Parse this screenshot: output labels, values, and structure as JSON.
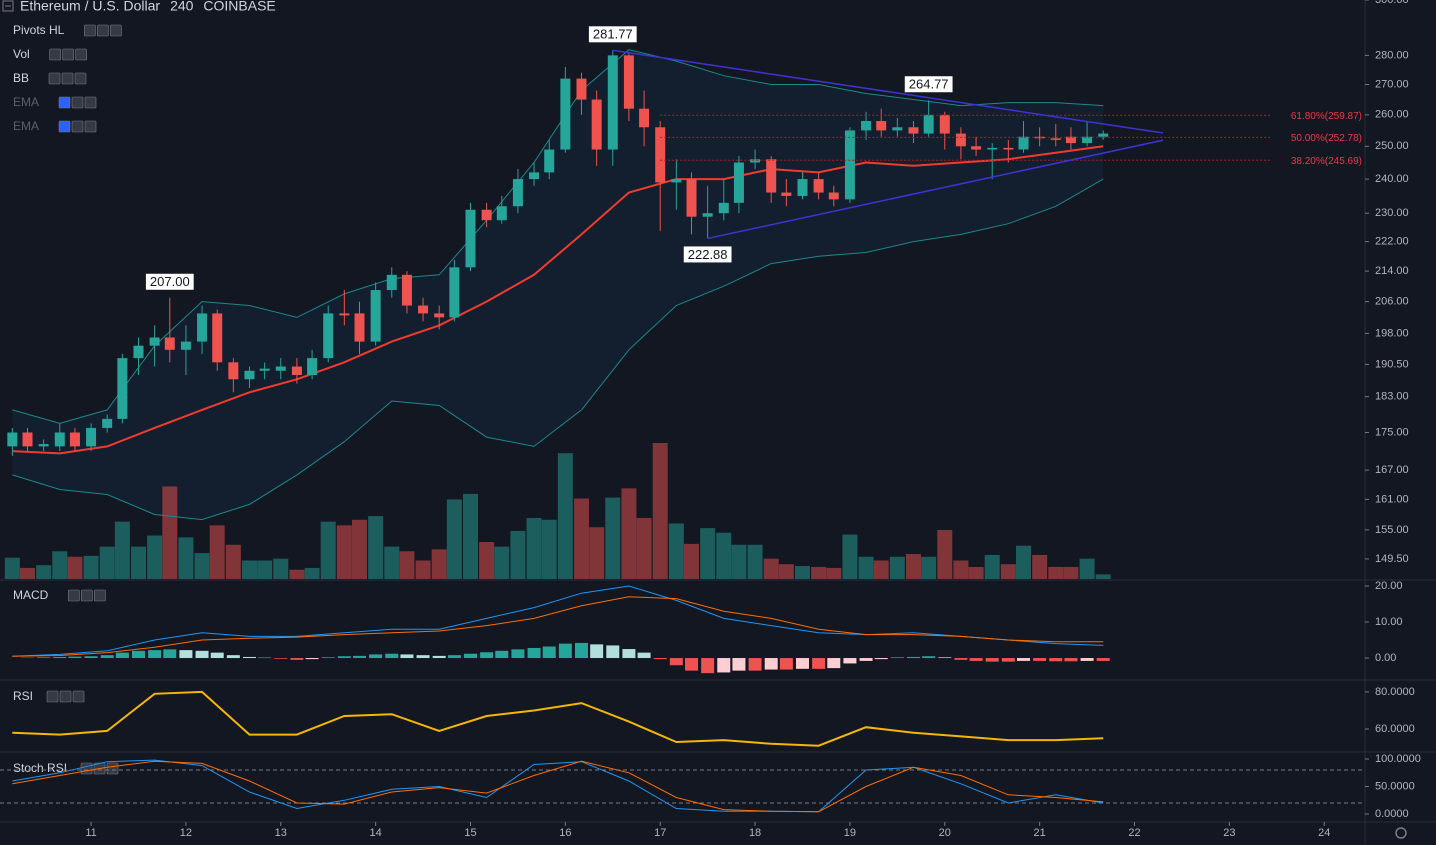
{
  "chart_data": [
    {
      "type": "candlestick",
      "symbol": "Ethereum / U.S. Dollar",
      "interval": "240",
      "exchange": "COINBASE",
      "legend_items": [
        "Pivots HL",
        "Vol",
        "BB",
        "EMA",
        "EMA"
      ],
      "log_scale": true,
      "up_color": "#26a69a",
      "down_color": "#ef5350",
      "xlim": [
        10.04,
        24.43
      ],
      "xticks": [
        11,
        12,
        13,
        14,
        15,
        16,
        17,
        18,
        19,
        20,
        21,
        22,
        23,
        24
      ],
      "ylim": [
        145.8,
        300
      ],
      "yticks": [
        {
          "value": 300,
          "label": "300.00"
        },
        {
          "value": 280,
          "label": "280.00"
        },
        {
          "value": 270,
          "label": "270.00"
        },
        {
          "value": 260,
          "label": "260.00"
        },
        {
          "value": 250,
          "label": "250.00"
        },
        {
          "value": 240,
          "label": "240.00"
        },
        {
          "value": 230,
          "label": "230.00"
        },
        {
          "value": 222,
          "label": "222.00"
        },
        {
          "value": 214,
          "label": "214.00"
        },
        {
          "value": 206,
          "label": "206.00"
        },
        {
          "value": 198,
          "label": "198.00"
        },
        {
          "value": 190.5,
          "label": "190.50"
        },
        {
          "value": 183,
          "label": "183.00"
        },
        {
          "value": 175,
          "label": "175.00"
        },
        {
          "value": 167,
          "label": "167.00"
        },
        {
          "value": 161,
          "label": "161.00"
        },
        {
          "value": 155,
          "label": "155.00"
        },
        {
          "value": 149.5,
          "label": "149.50"
        }
      ],
      "x": [
        10.17,
        10.33,
        10.5,
        10.67,
        10.83,
        11,
        11.17,
        11.33,
        11.5,
        11.67,
        11.83,
        12,
        12.17,
        12.33,
        12.5,
        12.67,
        12.83,
        13,
        13.17,
        13.33,
        13.5,
        13.67,
        13.83,
        14,
        14.17,
        14.33,
        14.5,
        14.67,
        14.83,
        15,
        15.17,
        15.33,
        15.5,
        15.67,
        15.83,
        16,
        16.17,
        16.33,
        16.5,
        16.67,
        16.83,
        17,
        17.17,
        17.33,
        17.5,
        17.67,
        17.83,
        18,
        18.17,
        18.33,
        18.5,
        18.67,
        18.83,
        19,
        19.17,
        19.33,
        19.5,
        19.67,
        19.83,
        20,
        20.17,
        20.33,
        20.5,
        20.67,
        20.83,
        21,
        21.17,
        21.33,
        21.5,
        21.67
      ],
      "open": [
        172,
        175,
        172,
        172,
        175,
        172,
        176,
        178,
        192,
        195,
        197,
        194,
        196,
        203,
        191,
        187,
        189,
        189,
        190,
        188,
        192,
        203,
        203,
        196,
        209,
        213,
        205,
        203,
        202,
        215,
        231,
        228,
        232,
        240,
        242,
        249,
        272,
        265,
        249,
        280,
        262,
        256,
        239,
        240,
        229,
        230,
        233,
        245,
        246,
        236,
        235,
        240,
        236,
        234,
        255,
        258,
        255,
        256,
        254,
        260,
        254,
        250,
        249,
        249.5,
        249,
        253,
        252.5,
        253,
        251,
        253
      ],
      "high": [
        176,
        176,
        173.5,
        177,
        176,
        177,
        179,
        193,
        197,
        200,
        207,
        200,
        205,
        204,
        192,
        190,
        191,
        192,
        192,
        194,
        205,
        209,
        206,
        211,
        215,
        214,
        207,
        205,
        217,
        233,
        233,
        235,
        243,
        245,
        252,
        276,
        274,
        268,
        281.77,
        281,
        268,
        258,
        246,
        242,
        238,
        240,
        247,
        249,
        247,
        240,
        242,
        242,
        238,
        256,
        261,
        262,
        259,
        258,
        264.77,
        261,
        256,
        253,
        251,
        252,
        258,
        256,
        257,
        256,
        258,
        255
      ],
      "low": [
        170,
        171,
        171,
        171,
        171,
        171,
        175,
        177,
        188,
        190,
        191,
        188,
        193,
        189,
        184,
        185,
        187,
        187,
        186,
        187,
        191,
        200,
        193,
        195,
        207,
        203,
        201,
        199,
        201,
        214,
        226,
        227,
        230,
        238,
        240,
        248,
        260,
        244,
        244,
        258,
        250,
        225,
        231,
        224,
        222.88,
        228,
        230,
        243,
        233,
        232,
        234,
        234,
        232,
        233,
        252,
        253,
        253,
        251,
        253,
        249,
        246,
        247,
        240,
        245,
        248,
        250,
        250,
        249,
        250,
        252
      ],
      "close": [
        175,
        172,
        172.5,
        175,
        172,
        176,
        178,
        192,
        195,
        197,
        194,
        196,
        203,
        191,
        187,
        189,
        189.5,
        190,
        188,
        192,
        203,
        202.5,
        196,
        209,
        213,
        205,
        203,
        202,
        215,
        231,
        228,
        232,
        240,
        242,
        249,
        272,
        265,
        249,
        280,
        262,
        256,
        239,
        240,
        229,
        230,
        233,
        245,
        246,
        236,
        235,
        240,
        236,
        234,
        255,
        258,
        255,
        256,
        254,
        260,
        254,
        250,
        249,
        249.5,
        249,
        253,
        252.5,
        252,
        251,
        253,
        254
      ],
      "volume": [
        23,
        12,
        15,
        30,
        24,
        25,
        35,
        62,
        35,
        47,
        100,
        45,
        28,
        58,
        37,
        20,
        20,
        22,
        10,
        12,
        62,
        58,
        64,
        68,
        35,
        30,
        20,
        32,
        86,
        92,
        40,
        35,
        52,
        66,
        64,
        136,
        87,
        56,
        88,
        98,
        66,
        147,
        60,
        38,
        55,
        50,
        37,
        37,
        22,
        16,
        14,
        13,
        12,
        48,
        24,
        20,
        24,
        27,
        24,
        53,
        20,
        13,
        26,
        16,
        36,
        26,
        13,
        13,
        22,
        5
      ],
      "line_x": [
        10.17,
        10.67,
        11.17,
        11.67,
        12.17,
        12.67,
        13.17,
        13.67,
        14.17,
        14.67,
        15.17,
        15.67,
        16.17,
        16.67,
        17.17,
        17.67,
        18.17,
        18.67,
        19.17,
        19.67,
        20.17,
        20.67,
        21.17,
        21.67
      ],
      "lines": [
        {
          "color": "#f23b2f",
          "values": [
            171,
            170.5,
            172,
            176,
            180,
            184,
            187,
            191,
            196,
            200,
            206,
            213,
            224,
            236,
            240,
            240,
            243,
            242,
            245,
            244,
            245,
            246,
            248,
            250
          ]
        },
        {
          "color": "#1b8a8a",
          "values": [
            180,
            177,
            180,
            195,
            206,
            205,
            202,
            208,
            212,
            213,
            228,
            245,
            268,
            282,
            278,
            273,
            270,
            270,
            267,
            265,
            263,
            264,
            264,
            263
          ]
        },
        {
          "color": "#1b8a8a",
          "values": [
            166,
            163,
            162,
            158,
            157,
            160,
            166,
            173,
            182,
            181,
            174,
            172,
            180,
            194,
            205,
            210,
            216,
            218,
            219,
            222,
            224,
            227,
            232,
            240
          ]
        }
      ],
      "pivots": [
        {
          "label": "207.00",
          "x": 11.83,
          "value": 207,
          "position": "above"
        },
        {
          "label": "281.77",
          "x": 16.5,
          "value": 281.77,
          "position": "above"
        },
        {
          "label": "264.77",
          "x": 19.83,
          "value": 264.77,
          "position": "above"
        },
        {
          "label": "222.88",
          "x": 17.5,
          "value": 222.88,
          "position": "below"
        }
      ],
      "trendlines": [
        {
          "x": [
            16.5,
            22.3
          ],
          "values": [
            281.77,
            254.2
          ]
        },
        {
          "x": [
            17.5,
            22.3
          ],
          "values": [
            222.88,
            251.9
          ]
        }
      ],
      "fib_levels": [
        {
          "label": "61.80%(259.87)",
          "value": 259.87,
          "x": [
            17,
            23.43
          ]
        },
        {
          "label": "50.00%(252.78)",
          "value": 252.78,
          "x": [
            17,
            23.43
          ]
        },
        {
          "label": "38.20%(245.69)",
          "value": 245.69,
          "x": [
            17,
            23.43
          ]
        }
      ]
    },
    {
      "type": "macd",
      "title": "MACD",
      "ylim": [
        -6.1,
        21.67
      ],
      "yticks": [
        {
          "value": 20,
          "label": "20.00"
        },
        {
          "value": 10,
          "label": "10.00"
        },
        {
          "value": 0,
          "label": "0.00"
        }
      ],
      "x": [
        10.17,
        10.67,
        11.17,
        11.67,
        12.17,
        12.67,
        13.17,
        13.67,
        14.17,
        14.67,
        15.17,
        15.67,
        16.17,
        16.67,
        17.17,
        17.67,
        18.17,
        18.67,
        19.17,
        19.67,
        20.17,
        20.67,
        21.17,
        21.67
      ],
      "series": [
        {
          "color": "#2196f3",
          "values": [
            0.5,
            1,
            2,
            5,
            7,
            6,
            6,
            7,
            8,
            8,
            11,
            14,
            18,
            20,
            16,
            11,
            9,
            7,
            6.5,
            7,
            6,
            5,
            4,
            3.5
          ]
        },
        {
          "color": "#ff6d00",
          "values": [
            0.5,
            0.7,
            1.5,
            3,
            5,
            5.5,
            5.8,
            6.5,
            7,
            7.5,
            9,
            11,
            14.5,
            17,
            16.5,
            13,
            11,
            8,
            6.5,
            6.5,
            6,
            5,
            4.5,
            4.5
          ]
        }
      ],
      "histogram": [
        0,
        0.1,
        0.2,
        0.3,
        0.4,
        0.5,
        0.8,
        1.5,
        2,
        2.2,
        2.4,
        2.2,
        2,
        1.5,
        0.8,
        0.3,
        0.1,
        -0.2,
        -0.5,
        -0.3,
        0.2,
        0.5,
        0.6,
        1,
        1.2,
        1,
        0.8,
        0.6,
        0.8,
        1.2,
        1.6,
        2,
        2.4,
        2.8,
        3.2,
        4,
        4.2,
        3.8,
        3.5,
        2.5,
        1.5,
        -0.3,
        -2,
        -3.5,
        -4.2,
        -4,
        -3.5,
        -3.5,
        -3.2,
        -3.2,
        -3,
        -3,
        -2.8,
        -1.5,
        -0.8,
        -0.3,
        0.2,
        0.3,
        0.5,
        0.2,
        -0.5,
        -0.8,
        -1,
        -1,
        -0.8,
        -0.8,
        -0.9,
        -0.9,
        -0.8,
        -0.8
      ]
    },
    {
      "type": "line",
      "title": "RSI",
      "ylim": [
        47.6,
        85.9
      ],
      "yticks": [
        {
          "value": 80,
          "label": "80.0000"
        },
        {
          "value": 60,
          "label": "60.0000"
        }
      ],
      "x": [
        10.17,
        10.67,
        11.17,
        11.67,
        12.17,
        12.67,
        13.17,
        13.67,
        14.17,
        14.67,
        15.17,
        15.67,
        16.17,
        16.67,
        17.17,
        17.67,
        18.17,
        18.67,
        19.17,
        19.67,
        20.17,
        20.67,
        21.17,
        21.67
      ],
      "series": [
        {
          "color": "#f5b700",
          "values": [
            58,
            57,
            59,
            79,
            80,
            57,
            57,
            67,
            68,
            59,
            67,
            70,
            74,
            64,
            53,
            54,
            52,
            51,
            61,
            58,
            56,
            54,
            54,
            55
          ]
        }
      ]
    },
    {
      "type": "line",
      "title": "Stoch RSI",
      "ylim": [
        -14.5,
        110.9
      ],
      "yticks": [
        {
          "value": 100,
          "label": "100.0000"
        },
        {
          "value": 50,
          "label": "50.0000"
        },
        {
          "value": 0,
          "label": "0.0000"
        }
      ],
      "hlines": [
        80,
        20
      ],
      "x": [
        10.17,
        10.67,
        11.17,
        11.67,
        12.17,
        12.67,
        13.17,
        13.67,
        14.17,
        14.67,
        15.17,
        15.67,
        16.17,
        16.67,
        17.17,
        17.67,
        18.17,
        18.67,
        19.17,
        19.67,
        20.17,
        20.67,
        21.17,
        21.67
      ],
      "series": [
        {
          "color": "#2196f3",
          "values": [
            60,
            75,
            95,
            98,
            88,
            40,
            10,
            25,
            45,
            50,
            30,
            90,
            95,
            60,
            10,
            5,
            5,
            4,
            80,
            85,
            55,
            20,
            35,
            20
          ]
        },
        {
          "color": "#ff6d00",
          "values": [
            55,
            70,
            85,
            96,
            92,
            60,
            20,
            18,
            40,
            48,
            38,
            70,
            96,
            75,
            30,
            8,
            5,
            4,
            50,
            85,
            70,
            35,
            30,
            22
          ]
        }
      ]
    }
  ]
}
